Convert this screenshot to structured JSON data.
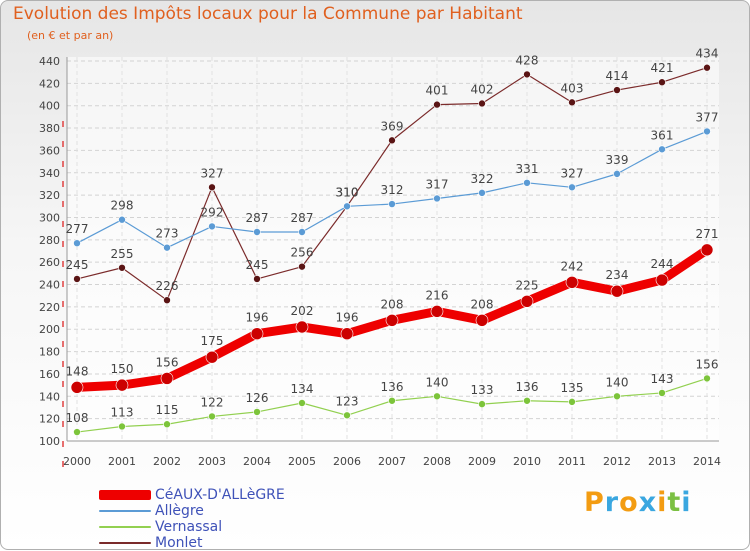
{
  "chart_data": {
    "type": "line",
    "title": "Evolution des Impôts locaux pour la Commune par Habitant",
    "subtitle": "(en € et par an)",
    "x": [
      2000,
      2001,
      2002,
      2003,
      2004,
      2005,
      2006,
      2007,
      2008,
      2009,
      2010,
      2011,
      2012,
      2013,
      2014
    ],
    "x_tick_labels": [
      "2000",
      "2001",
      "2002",
      "2003",
      "2004",
      "2005",
      "2006",
      "2007",
      "2008",
      "2009",
      "2010",
      "2011",
      "2012",
      "2013",
      "2014"
    ],
    "y_ticks": [
      100,
      120,
      140,
      160,
      180,
      200,
      220,
      240,
      260,
      280,
      300,
      320,
      340,
      360,
      380,
      400,
      420,
      440
    ],
    "ylim": [
      100,
      440
    ],
    "grid": true,
    "legend_position": "bottom-left",
    "series": [
      {
        "name": "CéAUX-D'ALLèGRE",
        "color": "#ee0000",
        "point_color": "#cc0000",
        "values": [
          148,
          150,
          156,
          175,
          196,
          202,
          196,
          208,
          216,
          208,
          225,
          242,
          234,
          244,
          271
        ]
      },
      {
        "name": "Allègre",
        "color": "#5b9bd5",
        "point_color": "#5b9bd5",
        "values": [
          277,
          298,
          273,
          292,
          287,
          287,
          310,
          312,
          317,
          322,
          331,
          327,
          339,
          361,
          377
        ]
      },
      {
        "name": "Vernassal",
        "color": "#92d050",
        "point_color": "#7cc43a",
        "values": [
          108,
          113,
          115,
          122,
          126,
          134,
          123,
          136,
          140,
          133,
          136,
          135,
          140,
          143,
          156
        ]
      },
      {
        "name": "Monlet",
        "color": "#7b2b2b",
        "point_color": "#5a1414",
        "values": [
          245,
          255,
          226,
          327,
          245,
          256,
          310,
          369,
          401,
          402,
          428,
          403,
          414,
          421,
          434
        ]
      }
    ]
  },
  "logo": {
    "text": "Proxiti",
    "letters": [
      "P",
      "r",
      "o",
      "x",
      "i",
      "t",
      "i"
    ],
    "colors": [
      "#f39c12",
      "#3aa7e0",
      "#f39c12",
      "#3aa7e0",
      "#f39c12",
      "#7bc043",
      "#3aa7e0"
    ]
  }
}
